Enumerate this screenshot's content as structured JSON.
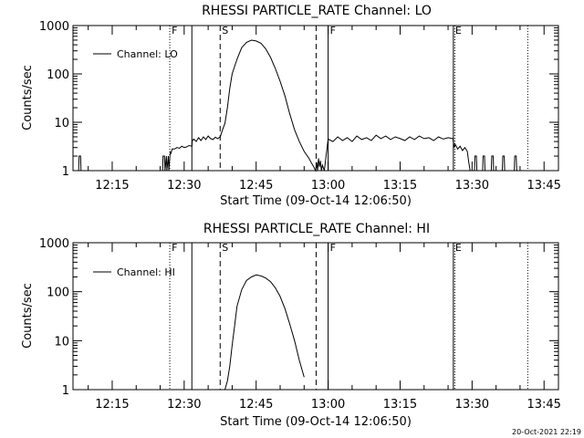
{
  "footer_timestamp": "20-Oct-2021 22:19",
  "chart_data": [
    {
      "type": "line",
      "title": "RHESSI PARTICLE_RATE Channel: LO",
      "xlabel": "Start Time (09-Oct-14 12:06:50)",
      "ylabel": "Counts/sec",
      "y_scale": "log",
      "ylim": [
        1,
        1000
      ],
      "xlim_minutes_of_day": [
        726.83,
        828.0
      ],
      "x_ticks": [
        {
          "label": "12:15",
          "value": 735
        },
        {
          "label": "12:30",
          "value": 750
        },
        {
          "label": "12:45",
          "value": 765
        },
        {
          "label": "13:00",
          "value": 780
        },
        {
          "label": "13:15",
          "value": 795
        },
        {
          "label": "13:30",
          "value": 810
        },
        {
          "label": "13:45",
          "value": 825
        }
      ],
      "y_ticks": [
        {
          "label": "1",
          "value": 1
        },
        {
          "label": "10",
          "value": 10
        },
        {
          "label": "100",
          "value": 100
        },
        {
          "label": "1000",
          "value": 1000
        }
      ],
      "legend": {
        "entries": [
          "Channel: LO"
        ],
        "position": "top-left"
      },
      "markers": [
        {
          "label": "F",
          "value": 747.0,
          "style": "dotted"
        },
        {
          "label": "",
          "value": 751.6,
          "style": "solid"
        },
        {
          "label": "S",
          "value": 757.5,
          "style": "dashed"
        },
        {
          "label": "",
          "value": 777.5,
          "style": "dashed"
        },
        {
          "label": "F",
          "value": 780.0,
          "style": "solid"
        },
        {
          "label": "E",
          "value": 806.1,
          "style": "solid"
        },
        {
          "label": "",
          "value": 806.4,
          "style": "dotted"
        },
        {
          "label": "",
          "value": 821.6,
          "style": "dotted"
        }
      ],
      "series": [
        {
          "name": "Channel: LO",
          "x": [
            728.0,
            728.1,
            728.4,
            728.5,
            745.5,
            745.6,
            745.9,
            746.0,
            746.3,
            746.4,
            746.7,
            746.8,
            747.1,
            747.2,
            747.5,
            748.0,
            748.5,
            749.0,
            749.5,
            750.0,
            750.5,
            751.0,
            751.6,
            751.7,
            752.0,
            752.5,
            753.0,
            753.5,
            754.0,
            754.5,
            755.0,
            755.5,
            756.0,
            756.5,
            757.0,
            757.5,
            758.0,
            758.5,
            759.0,
            759.5,
            760.0,
            761.0,
            762.0,
            763.0,
            764.0,
            765.0,
            766.0,
            767.0,
            768.0,
            769.0,
            770.0,
            771.0,
            772.0,
            773.0,
            774.0,
            775.0,
            776.0,
            776.6,
            777.0,
            777.4,
            777.6,
            777.8,
            778.0,
            778.2,
            778.4,
            778.6,
            778.8,
            779.2,
            780.0,
            781.0,
            782.0,
            783.0,
            784.0,
            785.0,
            786.0,
            787.0,
            788.0,
            789.0,
            790.0,
            791.0,
            792.0,
            793.0,
            794.0,
            795.0,
            796.0,
            797.0,
            798.0,
            799.0,
            800.0,
            801.0,
            802.0,
            803.0,
            804.0,
            805.0,
            806.0,
            806.3,
            806.5,
            807.0,
            807.5,
            808.0,
            808.5,
            809.0,
            809.3,
            809.6,
            810.5,
            810.6,
            810.9,
            811.0,
            812.2,
            812.3,
            812.6,
            812.7,
            814.0,
            814.1,
            814.4,
            814.5,
            816.3,
            816.4,
            816.7,
            816.8,
            818.8,
            818.9,
            819.2,
            819.3
          ],
          "y": [
            1,
            2,
            2,
            1,
            1,
            2,
            2,
            1,
            2,
            1,
            2,
            1,
            2.5,
            2.2,
            2.8,
            2.8,
            3.0,
            2.9,
            3.2,
            3.0,
            3.1,
            3.3,
            3.2,
            4.2,
            4.5,
            4.0,
            4.8,
            4.2,
            5.0,
            4.4,
            5.2,
            4.6,
            4.4,
            4.9,
            4.6,
            5.0,
            7.0,
            9.5,
            20,
            50,
            100,
            200,
            350,
            450,
            500,
            480,
            430,
            330,
            220,
            130,
            70,
            35,
            15,
            7,
            4,
            2.5,
            1.8,
            1.4,
            1.2,
            1.0,
            1.5,
            1.0,
            1.8,
            1.2,
            1.6,
            1.0,
            1.3,
            1.0,
            4.5,
            4.0,
            5.0,
            4.2,
            4.8,
            4.0,
            5.2,
            4.4,
            4.8,
            4.2,
            5.4,
            4.6,
            5.2,
            4.4,
            5.0,
            4.6,
            4.2,
            5.0,
            4.4,
            5.2,
            4.6,
            4.8,
            4.2,
            5.0,
            4.5,
            4.8,
            4.6,
            3.0,
            3.5,
            2.8,
            3.2,
            2.6,
            3.0,
            2.5,
            1.5,
            1.0,
            1,
            2,
            2,
            1,
            1,
            2,
            2,
            1,
            1,
            2,
            2,
            1,
            1,
            2,
            2,
            1,
            1,
            2,
            2,
            1
          ]
        }
      ]
    },
    {
      "type": "line",
      "title": "RHESSI PARTICLE_RATE Channel: HI",
      "xlabel": "Start Time (09-Oct-14 12:06:50)",
      "ylabel": "Counts/sec",
      "y_scale": "log",
      "ylim": [
        1,
        1000
      ],
      "xlim_minutes_of_day": [
        726.83,
        828.0
      ],
      "x_ticks": [
        {
          "label": "12:15",
          "value": 735
        },
        {
          "label": "12:30",
          "value": 750
        },
        {
          "label": "12:45",
          "value": 765
        },
        {
          "label": "13:00",
          "value": 780
        },
        {
          "label": "13:15",
          "value": 795
        },
        {
          "label": "13:30",
          "value": 810
        },
        {
          "label": "13:45",
          "value": 825
        }
      ],
      "y_ticks": [
        {
          "label": "1",
          "value": 1
        },
        {
          "label": "10",
          "value": 10
        },
        {
          "label": "100",
          "value": 100
        },
        {
          "label": "1000",
          "value": 1000
        }
      ],
      "legend": {
        "entries": [
          "Channel: HI"
        ],
        "position": "top-left"
      },
      "markers": [
        {
          "label": "F",
          "value": 747.0,
          "style": "dotted"
        },
        {
          "label": "",
          "value": 751.6,
          "style": "solid"
        },
        {
          "label": "S",
          "value": 757.5,
          "style": "dashed"
        },
        {
          "label": "",
          "value": 777.5,
          "style": "dashed"
        },
        {
          "label": "F",
          "value": 780.0,
          "style": "solid"
        },
        {
          "label": "E",
          "value": 806.1,
          "style": "solid"
        },
        {
          "label": "",
          "value": 806.4,
          "style": "dotted"
        },
        {
          "label": "",
          "value": 821.6,
          "style": "dotted"
        }
      ],
      "series": [
        {
          "name": "Channel: HI",
          "x": [
            758.5,
            759.0,
            759.5,
            760.0,
            760.5,
            761.0,
            762.0,
            763.0,
            764.0,
            765.0,
            766.0,
            767.0,
            768.0,
            769.0,
            770.0,
            771.0,
            772.0,
            773.0,
            774.0,
            775.0
          ],
          "y": [
            1.0,
            1.5,
            3.0,
            8.0,
            20,
            50,
            110,
            170,
            200,
            220,
            210,
            190,
            160,
            120,
            80,
            45,
            22,
            10,
            4,
            1.8
          ]
        }
      ]
    }
  ]
}
